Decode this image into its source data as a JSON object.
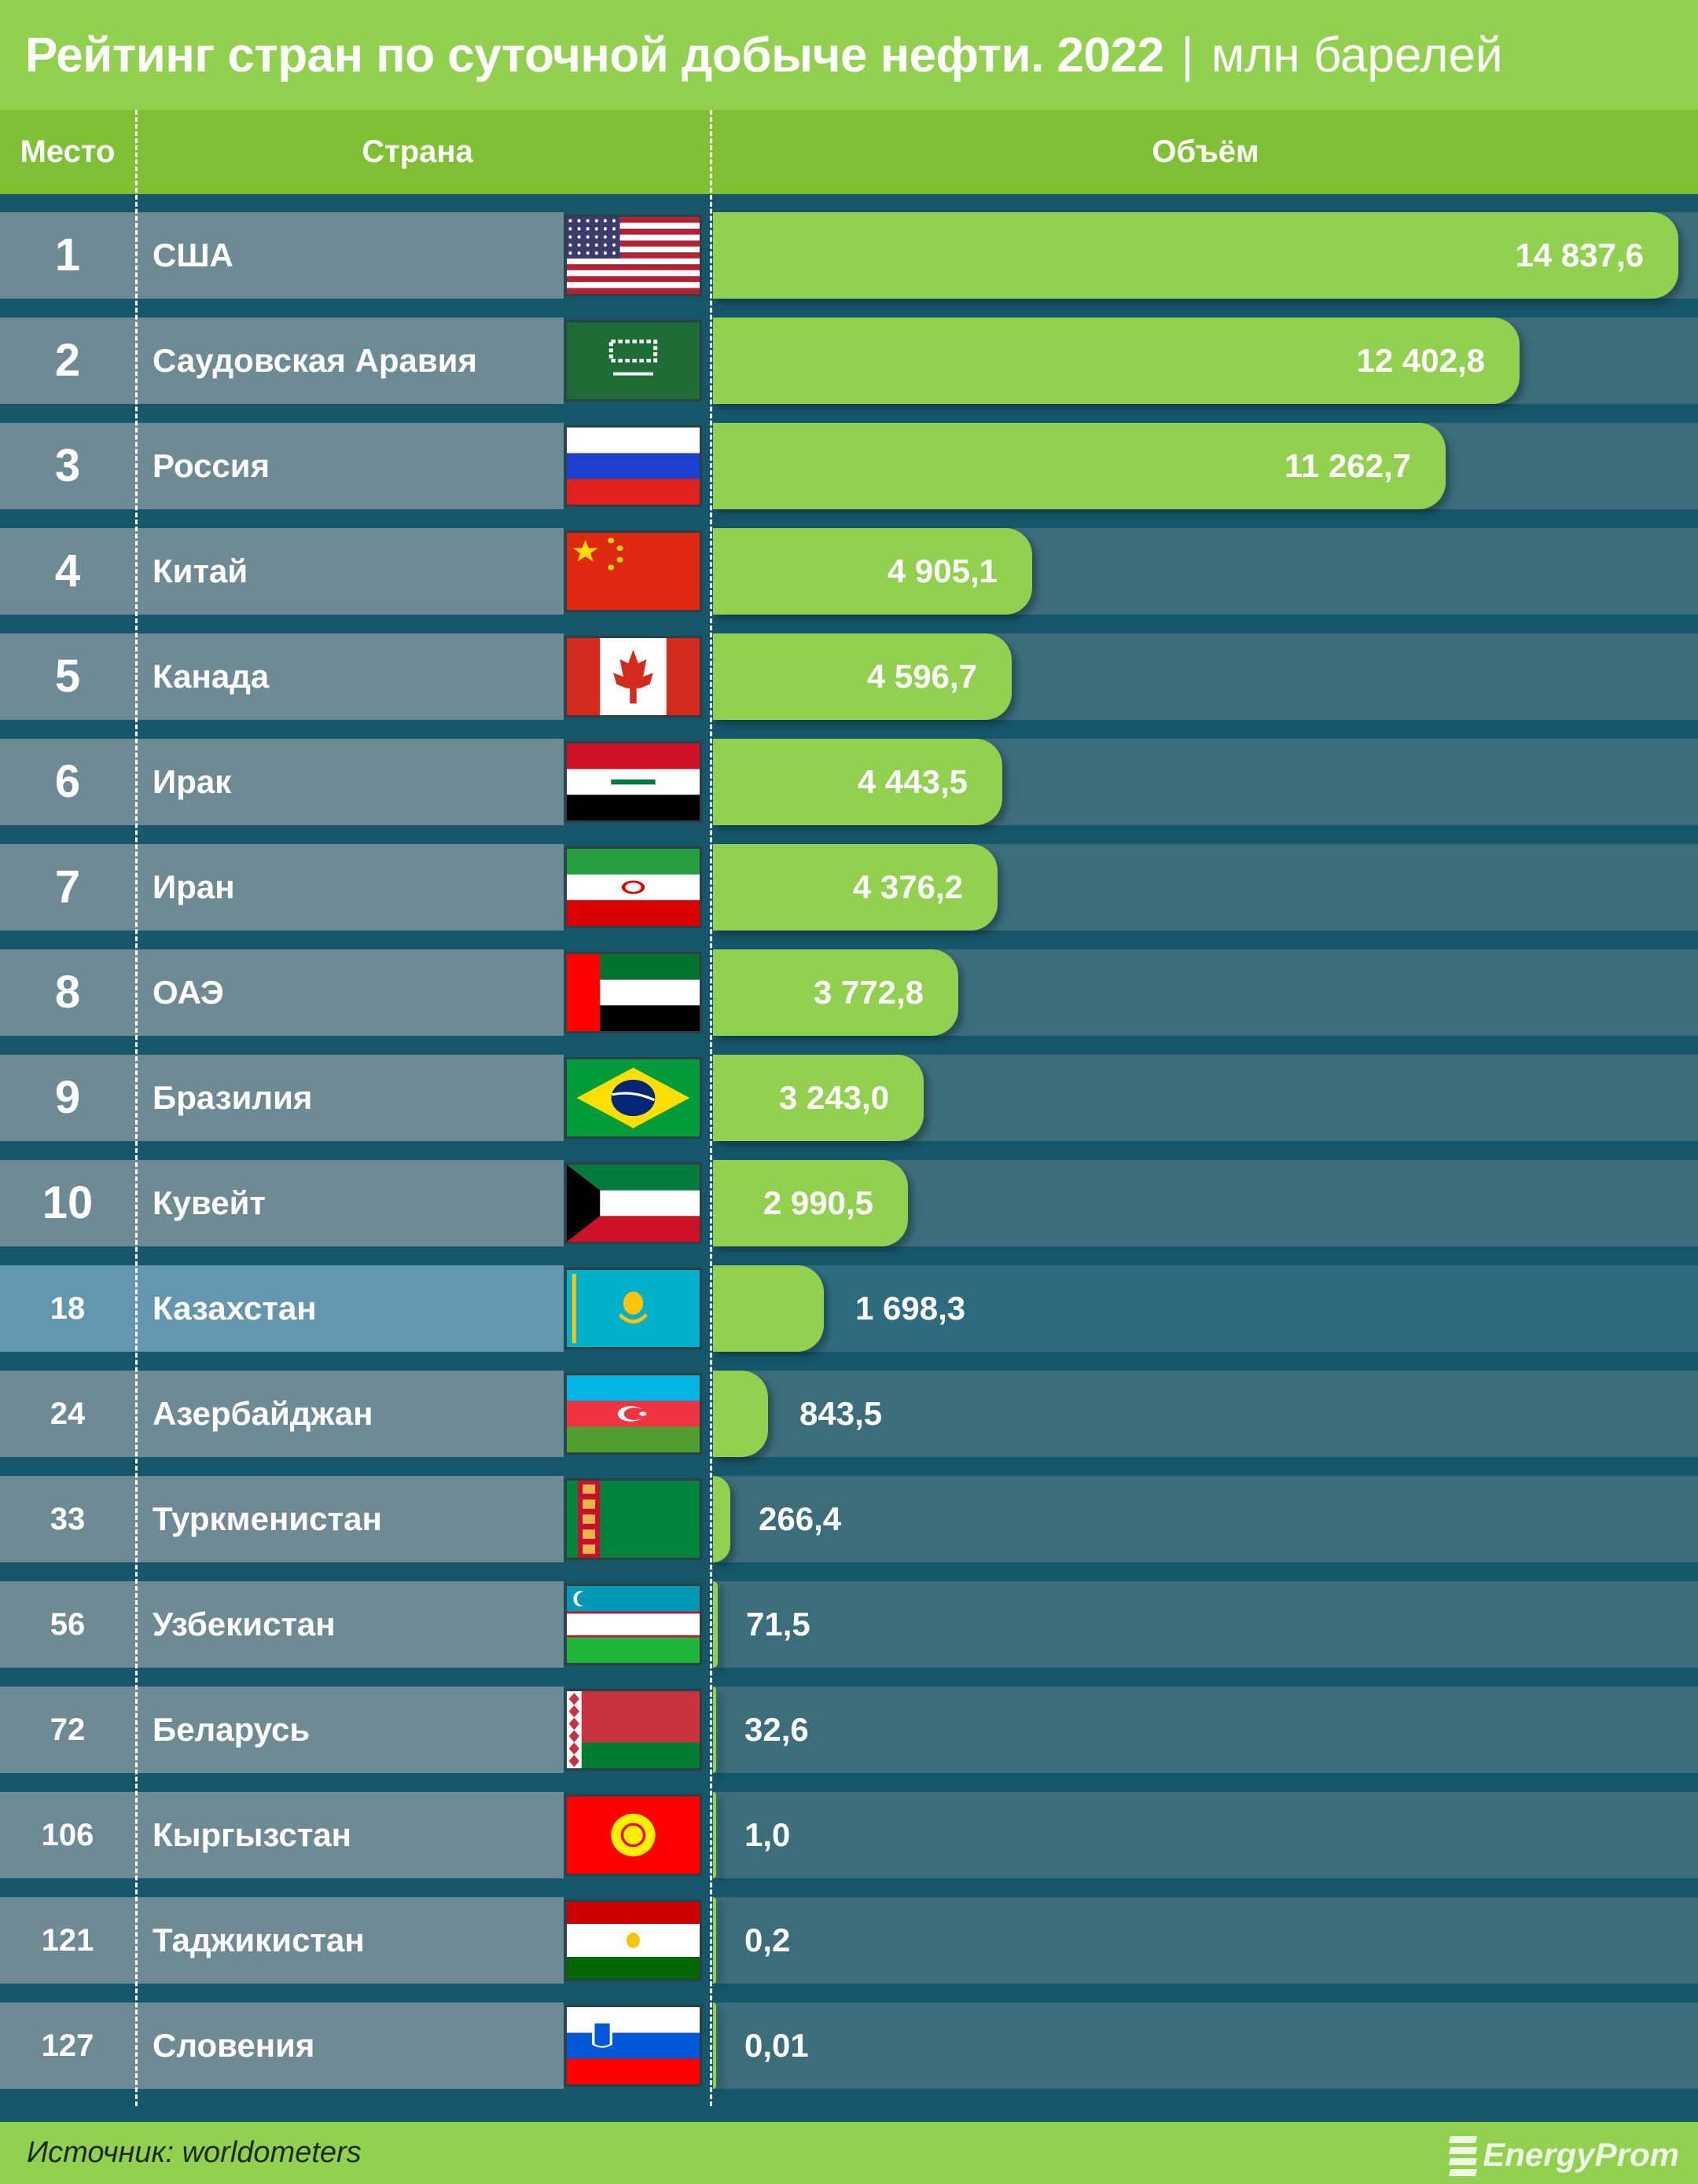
{
  "title": {
    "main": "Рейтинг стран по суточной добыче нефти. 2022",
    "separator": "|",
    "unit": "млн барелей"
  },
  "header": {
    "rank": "Место",
    "country": "Страна",
    "volume": "Объём"
  },
  "colors": {
    "title_band": "#92d050",
    "header_band": "#7fc035",
    "bar": "#92d050",
    "background": "#15566a",
    "row_cell": "#6e8a94",
    "highlight_cell": "#6596b0",
    "track": "#3b6d7a"
  },
  "rows": [
    {
      "rank": "1",
      "country": "США",
      "flag": "us-flag",
      "value": "14 837,6"
    },
    {
      "rank": "2",
      "country": "Саудовская Аравия",
      "flag": "saudi-arabia-flag",
      "value": "12 402,8"
    },
    {
      "rank": "3",
      "country": "Россия",
      "flag": "russia-flag",
      "value": "11 262,7"
    },
    {
      "rank": "4",
      "country": "Китай",
      "flag": "china-flag",
      "value": "4 905,1"
    },
    {
      "rank": "5",
      "country": "Канада",
      "flag": "canada-flag",
      "value": "4 596,7"
    },
    {
      "rank": "6",
      "country": "Ирак",
      "flag": "iraq-flag",
      "value": "4 443,5"
    },
    {
      "rank": "7",
      "country": "Иран",
      "flag": "iran-flag",
      "value": "4 376,2"
    },
    {
      "rank": "8",
      "country": "ОАЭ",
      "flag": "uae-flag",
      "value": "3 772,8"
    },
    {
      "rank": "9",
      "country": "Бразилия",
      "flag": "brazil-flag",
      "value": "3 243,0"
    },
    {
      "rank": "10",
      "country": "Кувейт",
      "flag": "kuwait-flag",
      "value": "2 990,5"
    },
    {
      "rank": "18",
      "country": "Казахстан",
      "flag": "kazakhstan-flag",
      "value": "1 698,3"
    },
    {
      "rank": "24",
      "country": "Азербайджан",
      "flag": "azerbaijan-flag",
      "value": "843,5"
    },
    {
      "rank": "33",
      "country": "Туркменистан",
      "flag": "turkmenistan-flag",
      "value": "266,4"
    },
    {
      "rank": "56",
      "country": "Узбекистан",
      "flag": "uzbekistan-flag",
      "value": "71,5"
    },
    {
      "rank": "72",
      "country": "Беларусь",
      "flag": "belarus-flag",
      "value": "32,6"
    },
    {
      "rank": "106",
      "country": "Кыргызстан",
      "flag": "kyrgyzstan-flag",
      "value": "1,0"
    },
    {
      "rank": "121",
      "country": "Таджикистан",
      "flag": "tajikistan-flag",
      "value": "0,2"
    },
    {
      "rank": "127",
      "country": "Словения",
      "flag": "slovenia-flag",
      "value": "0,01"
    }
  ],
  "footer": {
    "source": "Источник: worldometers",
    "logo": "EnergyProm"
  },
  "chart_data": {
    "type": "bar",
    "orientation": "horizontal",
    "title": "Рейтинг стран по суточной добыче нефти. 2022 | млн барелей",
    "xlabel": "Объём",
    "ylabel": "Страна",
    "columns": [
      "Место",
      "Страна",
      "Объём"
    ],
    "categories": [
      "США",
      "Саудовская Аравия",
      "Россия",
      "Китай",
      "Канада",
      "Ирак",
      "Иран",
      "ОАЭ",
      "Бразилия",
      "Кувейт",
      "Казахстан",
      "Азербайджан",
      "Туркменистан",
      "Узбекистан",
      "Беларусь",
      "Кыргызстан",
      "Таджикистан",
      "Словения"
    ],
    "ranks": [
      1,
      2,
      3,
      4,
      5,
      6,
      7,
      8,
      9,
      10,
      18,
      24,
      33,
      56,
      72,
      106,
      121,
      127
    ],
    "values": [
      14837.6,
      12402.8,
      11262.7,
      4905.1,
      4596.7,
      4443.5,
      4376.2,
      3772.8,
      3243.0,
      2990.5,
      1698.3,
      843.5,
      266.4,
      71.5,
      32.6,
      1.0,
      0.2,
      0.01
    ],
    "highlighted": "Казахстан",
    "grid": false,
    "legend": null,
    "source": "Источник: worldometers"
  }
}
